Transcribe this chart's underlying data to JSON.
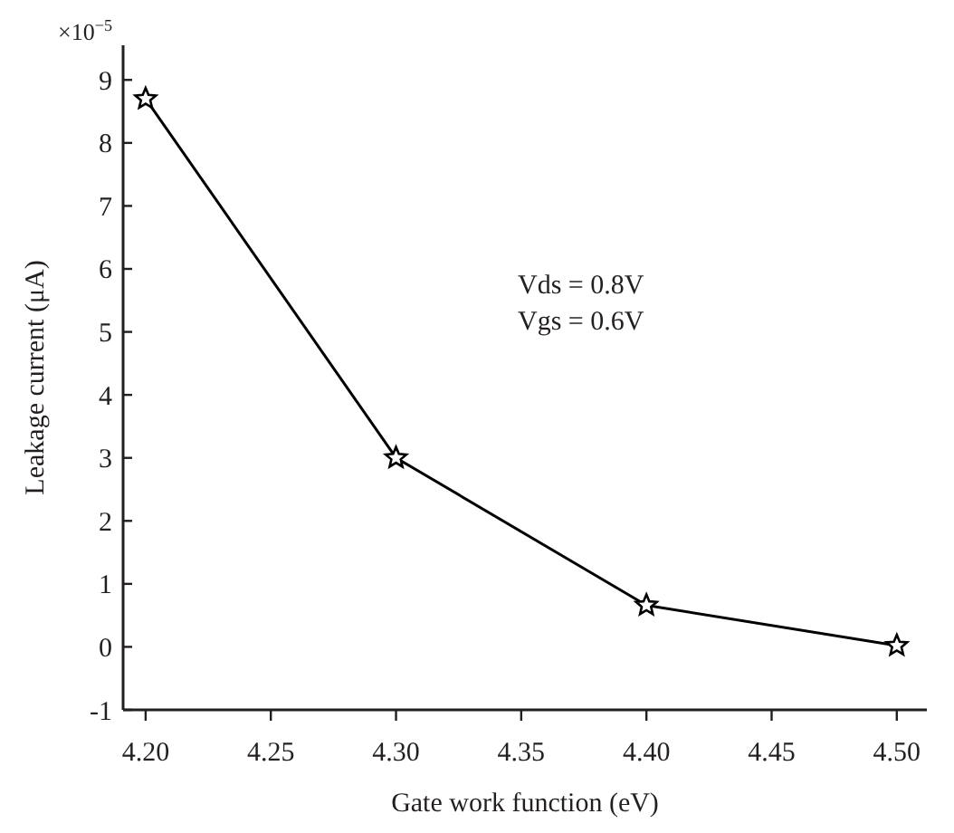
{
  "chart_data": {
    "type": "line",
    "xlabel": "Gate work function (eV)",
    "ylabel": "Leakage current (μA)",
    "x": [
      4.2,
      4.3,
      4.4,
      4.5
    ],
    "series": [
      {
        "color": "#000000",
        "values": [
          8.7,
          3.0,
          0.66,
          0.02
        ]
      }
    ],
    "xlim": [
      4.191,
      4.512
    ],
    "xticks": [
      {
        "value": 4.2,
        "label": "4.20"
      },
      4.25,
      {
        "value": 4.3,
        "label": "4.30"
      },
      4.35,
      {
        "value": 4.4,
        "label": "4.40"
      },
      4.45,
      {
        "value": 4.5,
        "label": "4.50"
      }
    ],
    "ylim": [
      -1,
      9.55
    ],
    "yticks": [
      -1,
      0,
      1,
      2,
      3,
      4,
      5,
      6,
      7,
      8,
      9
    ],
    "annotations": [
      "×10$^{−5}$",
      "Vds = 0.8V",
      "Vgs = 0.6V"
    ],
    "marker": "star",
    "line_style": "solid",
    "grid": false
  }
}
